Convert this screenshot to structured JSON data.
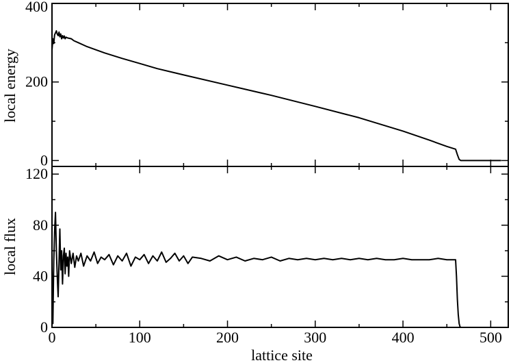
{
  "chart_data": [
    {
      "id": "energy",
      "type": "line",
      "title": "",
      "xlabel": "",
      "ylabel": "local energy",
      "xlim": [
        0,
        520
      ],
      "ylim": [
        -15,
        400
      ],
      "x_major_ticks": [
        0,
        100,
        200,
        300,
        400,
        500
      ],
      "x_minor_ticks": [
        50,
        150,
        250,
        350,
        450
      ],
      "y_major_ticks": [
        0,
        200,
        400
      ],
      "y_minor_ticks": [
        100,
        300
      ],
      "tick_labels_x": [],
      "tick_labels_y": [
        "0",
        "200",
        "400"
      ],
      "grid": false,
      "series": [
        {
          "color": "#000000",
          "x": [
            0,
            1,
            2,
            3,
            4,
            5,
            6,
            7,
            8,
            9,
            10,
            11,
            12,
            13,
            14,
            15,
            16,
            18,
            20,
            22,
            25,
            30,
            40,
            50,
            60,
            80,
            100,
            120,
            150,
            200,
            250,
            300,
            350,
            400,
            430,
            450,
            460,
            462,
            464,
            466,
            470,
            480,
            500,
            512
          ],
          "y": [
            281,
            310,
            298,
            320,
            325,
            330,
            322,
            318,
            327,
            315,
            322,
            310,
            318,
            312,
            317,
            310,
            314,
            312,
            311,
            310,
            305,
            300,
            290,
            282,
            274,
            260,
            247,
            234,
            218,
            192,
            166,
            138,
            109,
            75,
            52,
            36,
            29,
            15,
            3,
            0,
            0,
            0,
            0,
            0
          ]
        }
      ]
    },
    {
      "id": "flux",
      "type": "line",
      "title": "",
      "xlabel": "lattice site",
      "ylabel": "local flux",
      "xlim": [
        0,
        520
      ],
      "ylim": [
        0,
        126
      ],
      "x_major_ticks": [
        0,
        100,
        200,
        300,
        400,
        500
      ],
      "x_minor_ticks": [
        50,
        150,
        250,
        350,
        450
      ],
      "y_major_ticks": [
        0,
        40,
        80,
        120
      ],
      "y_minor_ticks": [
        20,
        60,
        100
      ],
      "tick_labels_x": [
        "0",
        "100",
        "200",
        "300",
        "400",
        "500"
      ],
      "tick_labels_y": [
        "0",
        "40",
        "80",
        "120"
      ],
      "grid": false,
      "series": [
        {
          "color": "#000000",
          "x": [
            0,
            1,
            2,
            3,
            4,
            5,
            6,
            7,
            8,
            9,
            10,
            11,
            12,
            13,
            14,
            15,
            16,
            17,
            18,
            19,
            20,
            22,
            24,
            26,
            28,
            30,
            33,
            36,
            40,
            44,
            48,
            52,
            56,
            60,
            65,
            70,
            75,
            80,
            85,
            90,
            95,
            100,
            105,
            110,
            115,
            120,
            125,
            130,
            135,
            140,
            145,
            150,
            155,
            160,
            170,
            180,
            190,
            200,
            210,
            220,
            230,
            240,
            250,
            260,
            270,
            280,
            290,
            300,
            310,
            320,
            330,
            340,
            350,
            360,
            370,
            380,
            390,
            400,
            410,
            420,
            430,
            440,
            450,
            458,
            460,
            461,
            462,
            463,
            464,
            465,
            466,
            470,
            480,
            500,
            512
          ],
          "y": [
            48,
            3,
            52,
            75,
            90,
            60,
            40,
            24,
            52,
            77,
            45,
            60,
            34,
            56,
            62,
            42,
            58,
            48,
            55,
            40,
            60,
            50,
            58,
            47,
            56,
            52,
            58,
            48,
            56,
            52,
            59,
            50,
            55,
            53,
            57,
            49,
            56,
            52,
            58,
            48,
            55,
            53,
            57,
            50,
            56,
            52,
            59,
            51,
            54,
            58,
            52,
            56,
            50,
            55,
            54,
            52,
            56,
            53,
            55,
            52,
            54,
            53,
            55,
            52,
            54,
            53,
            54,
            53,
            54,
            53,
            54,
            53,
            54,
            53,
            54,
            53,
            53,
            54,
            53,
            53,
            53,
            54,
            53,
            53,
            53,
            40,
            22,
            10,
            3,
            0.5,
            0,
            0,
            0,
            0,
            0
          ]
        }
      ]
    }
  ]
}
